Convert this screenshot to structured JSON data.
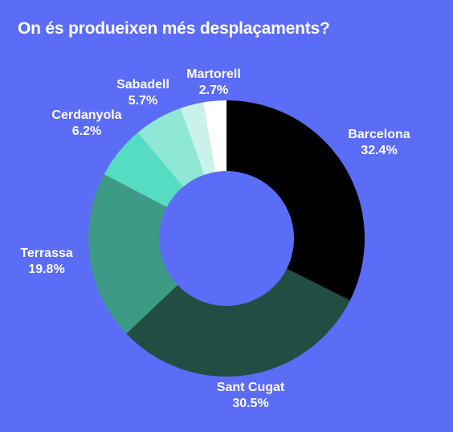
{
  "chart_data": {
    "type": "pie",
    "variant": "donut",
    "title": "On és produeixen més desplaçaments?",
    "unit": "%",
    "slices": [
      {
        "label": "Barcelona",
        "value": 32.4,
        "display": "32.4%",
        "color": "#000000"
      },
      {
        "label": "Sant Cugat",
        "value": 30.5,
        "display": "30.5%",
        "color": "#214d43"
      },
      {
        "label": "Terrassa",
        "value": 19.8,
        "display": "19.8%",
        "color": "#3d9a84"
      },
      {
        "label": "Cerdanyola",
        "value": 6.2,
        "display": "6.2%",
        "color": "#55dcc2"
      },
      {
        "label": "Sabadell",
        "value": 5.7,
        "display": "5.7%",
        "color": "#8fe8d5"
      },
      {
        "label": "",
        "value": 2.7,
        "display": "",
        "color": "#c9f3ea"
      },
      {
        "label": "Martorell",
        "value": 2.7,
        "display": "2.7%",
        "color": "#ffffff"
      }
    ],
    "legend": "none"
  },
  "colors": {
    "background": "#5b6cf6",
    "text": "#ffffff"
  }
}
